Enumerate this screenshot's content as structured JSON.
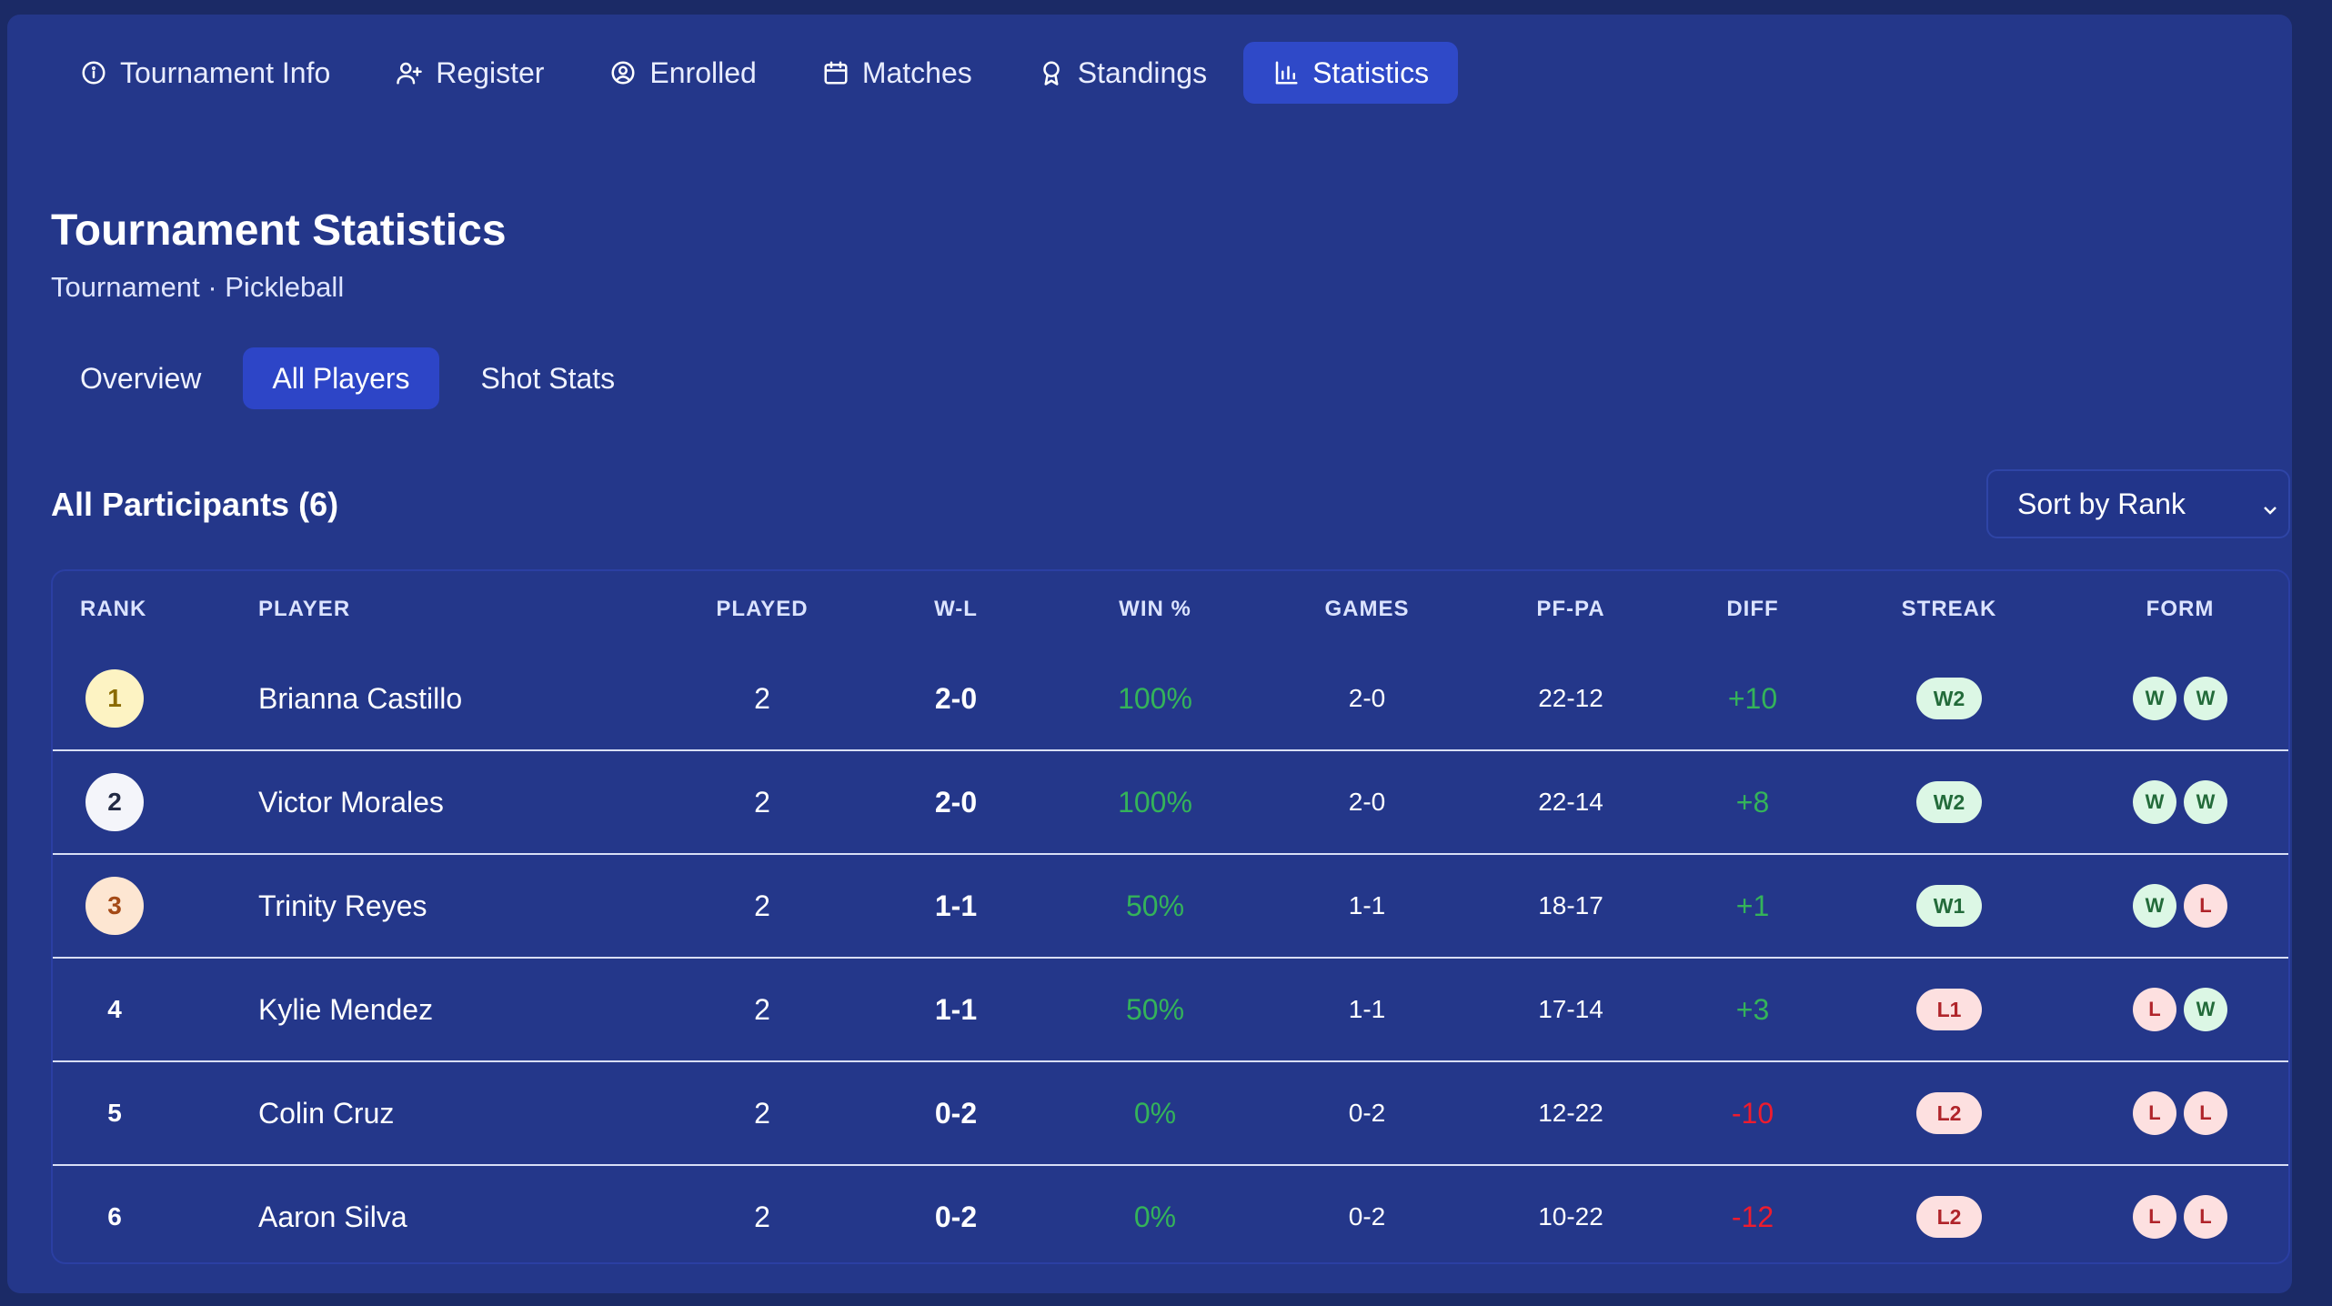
{
  "nav": {
    "tabs": [
      {
        "label": "Tournament Info",
        "icon": "info-icon"
      },
      {
        "label": "Register",
        "icon": "user-plus-icon"
      },
      {
        "label": "Enrolled",
        "icon": "user-circle-icon"
      },
      {
        "label": "Matches",
        "icon": "calendar-icon"
      },
      {
        "label": "Standings",
        "icon": "award-icon"
      },
      {
        "label": "Statistics",
        "icon": "bar-chart-icon",
        "active": true
      }
    ]
  },
  "header": {
    "title": "Tournament Statistics",
    "subtitle": "Tournament · Pickleball"
  },
  "subtabs": [
    {
      "label": "Overview"
    },
    {
      "label": "All Players",
      "active": true
    },
    {
      "label": "Shot Stats"
    }
  ],
  "section": {
    "title": "All Participants (6)",
    "sort_label": "Sort by Rank"
  },
  "table": {
    "columns": [
      "RANK",
      "PLAYER",
      "PLAYED",
      "W-L",
      "WIN %",
      "GAMES",
      "PF-PA",
      "DIFF",
      "STREAK",
      "FORM"
    ],
    "rows": [
      {
        "rank": "1",
        "player": "Brianna Castillo",
        "played": "2",
        "wl": "2-0",
        "win_pct": "100%",
        "games": "2-0",
        "pfpa": "22-12",
        "diff": "+10",
        "streak": "W2",
        "form": [
          "W",
          "W"
        ]
      },
      {
        "rank": "2",
        "player": "Victor Morales",
        "played": "2",
        "wl": "2-0",
        "win_pct": "100%",
        "games": "2-0",
        "pfpa": "22-14",
        "diff": "+8",
        "streak": "W2",
        "form": [
          "W",
          "W"
        ]
      },
      {
        "rank": "3",
        "player": "Trinity Reyes",
        "played": "2",
        "wl": "1-1",
        "win_pct": "50%",
        "games": "1-1",
        "pfpa": "18-17",
        "diff": "+1",
        "streak": "W1",
        "form": [
          "W",
          "L"
        ]
      },
      {
        "rank": "4",
        "player": "Kylie Mendez",
        "played": "2",
        "wl": "1-1",
        "win_pct": "50%",
        "games": "1-1",
        "pfpa": "17-14",
        "diff": "+3",
        "streak": "L1",
        "form": [
          "L",
          "W"
        ]
      },
      {
        "rank": "5",
        "player": "Colin Cruz",
        "played": "2",
        "wl": "0-2",
        "win_pct": "0%",
        "games": "0-2",
        "pfpa": "12-22",
        "diff": "-10",
        "streak": "L2",
        "form": [
          "L",
          "L"
        ]
      },
      {
        "rank": "6",
        "player": "Aaron Silva",
        "played": "2",
        "wl": "0-2",
        "win_pct": "0%",
        "games": "0-2",
        "pfpa": "10-22",
        "diff": "-12",
        "streak": "L2",
        "form": [
          "L",
          "L"
        ]
      }
    ]
  },
  "colors": {
    "background": "#24378a",
    "active_tab": "#2f49c8",
    "positive": "#34b35a",
    "negative": "#ee1c2e"
  }
}
